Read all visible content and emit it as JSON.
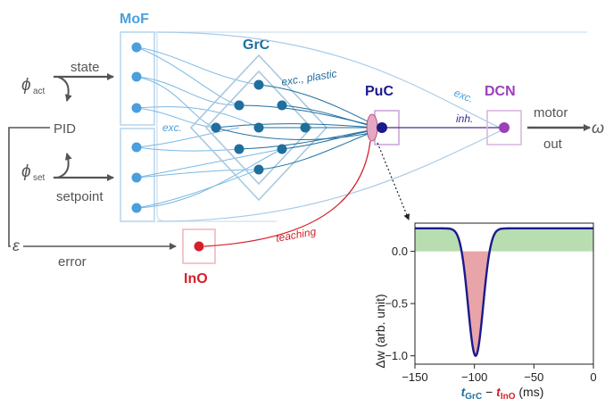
{
  "labels": {
    "mof": "MoF",
    "grc": "GrC",
    "puc": "PuC",
    "dcn": "DCN",
    "ino": "InO",
    "pid": "PID",
    "state": "state",
    "setpoint": "setpoint",
    "error": "error",
    "epsilon": "ε",
    "phi": "ϕ",
    "act_sub": "act",
    "set_sub": "set",
    "motor": "motor",
    "out": "out",
    "omega": "ω",
    "exc_mof": "exc.",
    "exc_plastic": "exc., plastic",
    "exc_dcn": "exc.",
    "inh": "inh.",
    "teaching": "teaching"
  },
  "colors": {
    "mof": "#4a9fdc",
    "mof_box": "#b9d7ee",
    "grc": "#1f6f9e",
    "grc_box": "#a8c8dc",
    "puc": "#1a1a8c",
    "puc_box": "#c8a8d8",
    "dcn": "#9a40b8",
    "ino": "#d42028",
    "ino_box": "#f0b8bc",
    "gray": "#555555",
    "curve": "#1a1a8c",
    "pos_fill": "#b8ddb0",
    "neg_fill": "#e8a4a8"
  },
  "chart_data": {
    "type": "area",
    "xlabel_main": "t",
    "xlabel_sub1": "GrC",
    "xlabel_minus": " − ",
    "xlabel_sub2": "InO",
    "xlabel_unit": " (ms)",
    "ylabel": "Δw (arb. unit)",
    "xlim": [
      -150,
      0
    ],
    "ylim": [
      -1.08,
      0.27
    ],
    "xticks": [
      "−150",
      "−100",
      "−50",
      "0"
    ],
    "xtick_values": [
      -150,
      -100,
      -50,
      0
    ],
    "yticks": [
      "0.0",
      "−0.5",
      "−1.0"
    ],
    "ytick_values": [
      0.0,
      -0.5,
      -1.0
    ],
    "baseline": 0.22,
    "dip_center": -99,
    "dip_depth": 1.22,
    "dip_width": 9
  }
}
